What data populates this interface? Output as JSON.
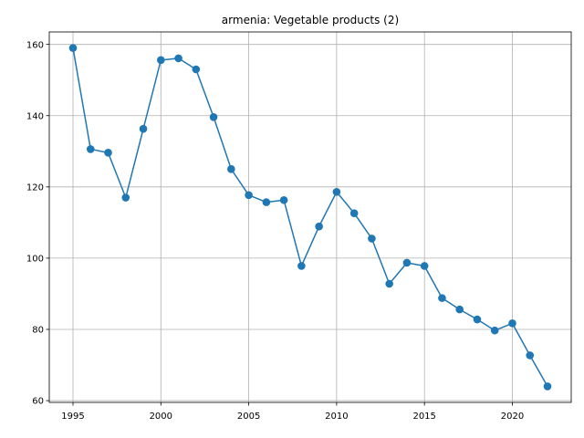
{
  "chart_data": {
    "type": "line",
    "title": "armenia: Vegetable products (2)",
    "xlabel": "",
    "ylabel": "",
    "x": [
      1995,
      1996,
      1997,
      1998,
      1999,
      2000,
      2001,
      2002,
      2003,
      2004,
      2005,
      2006,
      2007,
      2008,
      2009,
      2010,
      2011,
      2012,
      2013,
      2014,
      2015,
      2016,
      2017,
      2018,
      2019,
      2020,
      2021,
      2022
    ],
    "series": [
      {
        "values": [
          159.0,
          130.6,
          129.6,
          117.0,
          136.3,
          155.6,
          156.1,
          153.0,
          139.6,
          125.0,
          117.7,
          115.7,
          116.3,
          97.8,
          108.9,
          118.6,
          112.6,
          105.5,
          92.8,
          98.7,
          97.8,
          88.8,
          85.6,
          82.8,
          79.7,
          81.7,
          72.7,
          64.0
        ],
        "color": "#1f77b4"
      }
    ],
    "xlim": [
      1993.65,
      2023.35
    ],
    "ylim": [
      59.5,
      163.5
    ],
    "xticks": [
      1995,
      2000,
      2005,
      2010,
      2015,
      2020
    ],
    "yticks": [
      60,
      80,
      100,
      120,
      140,
      160
    ],
    "grid": true,
    "legend": "none"
  }
}
